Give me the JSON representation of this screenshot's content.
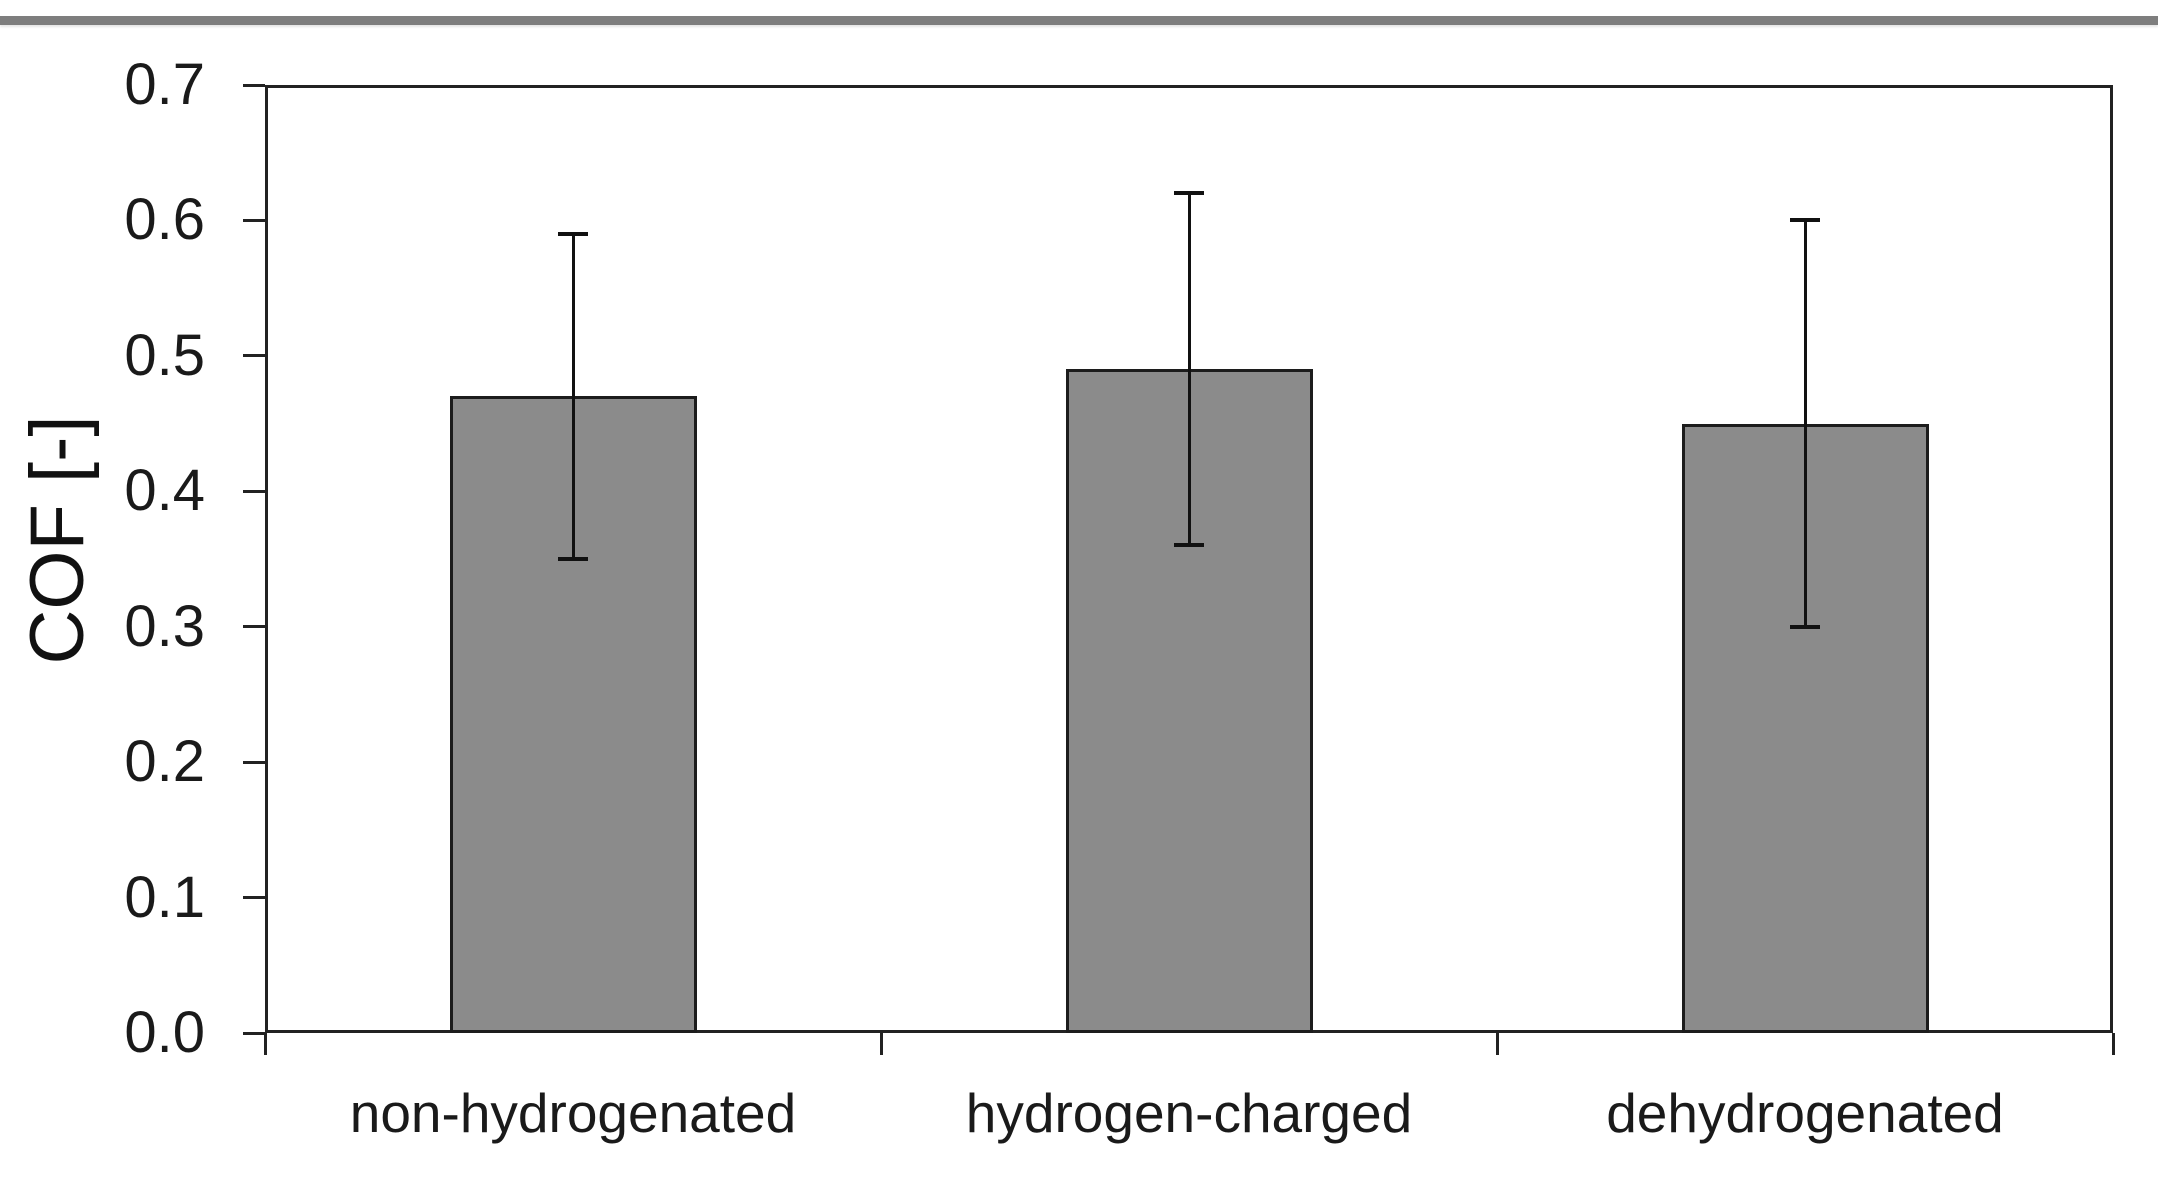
{
  "page": {
    "background": "#ffffff",
    "divider_color": "#7e7e7e"
  },
  "chart_data": {
    "type": "bar",
    "title": "",
    "categories": [
      "non-hydrogenated",
      "hydrogen-charged",
      "dehydrogenated"
    ],
    "values": [
      0.47,
      0.49,
      0.45
    ],
    "errors": [
      0.12,
      0.13,
      0.15
    ],
    "error_caps": {
      "upper": [
        0.59,
        0.62,
        0.6
      ],
      "lower": [
        0.35,
        0.36,
        0.3
      ]
    },
    "xlabel": "",
    "ylabel": "COF [-]",
    "ylim": [
      0.0,
      0.7
    ],
    "ytick_step": 0.1,
    "ytick_labels": [
      "0.0",
      "0.1",
      "0.2",
      "0.3",
      "0.4",
      "0.5",
      "0.6",
      "0.7"
    ],
    "grid": false,
    "legend": null,
    "bar_fill_color": "#8b8b8b",
    "bar_border_color": "#1c1c1c",
    "error_bar_color": "#111111",
    "axis_color": "#222222",
    "tick_label_color": "#1a1a1a"
  }
}
